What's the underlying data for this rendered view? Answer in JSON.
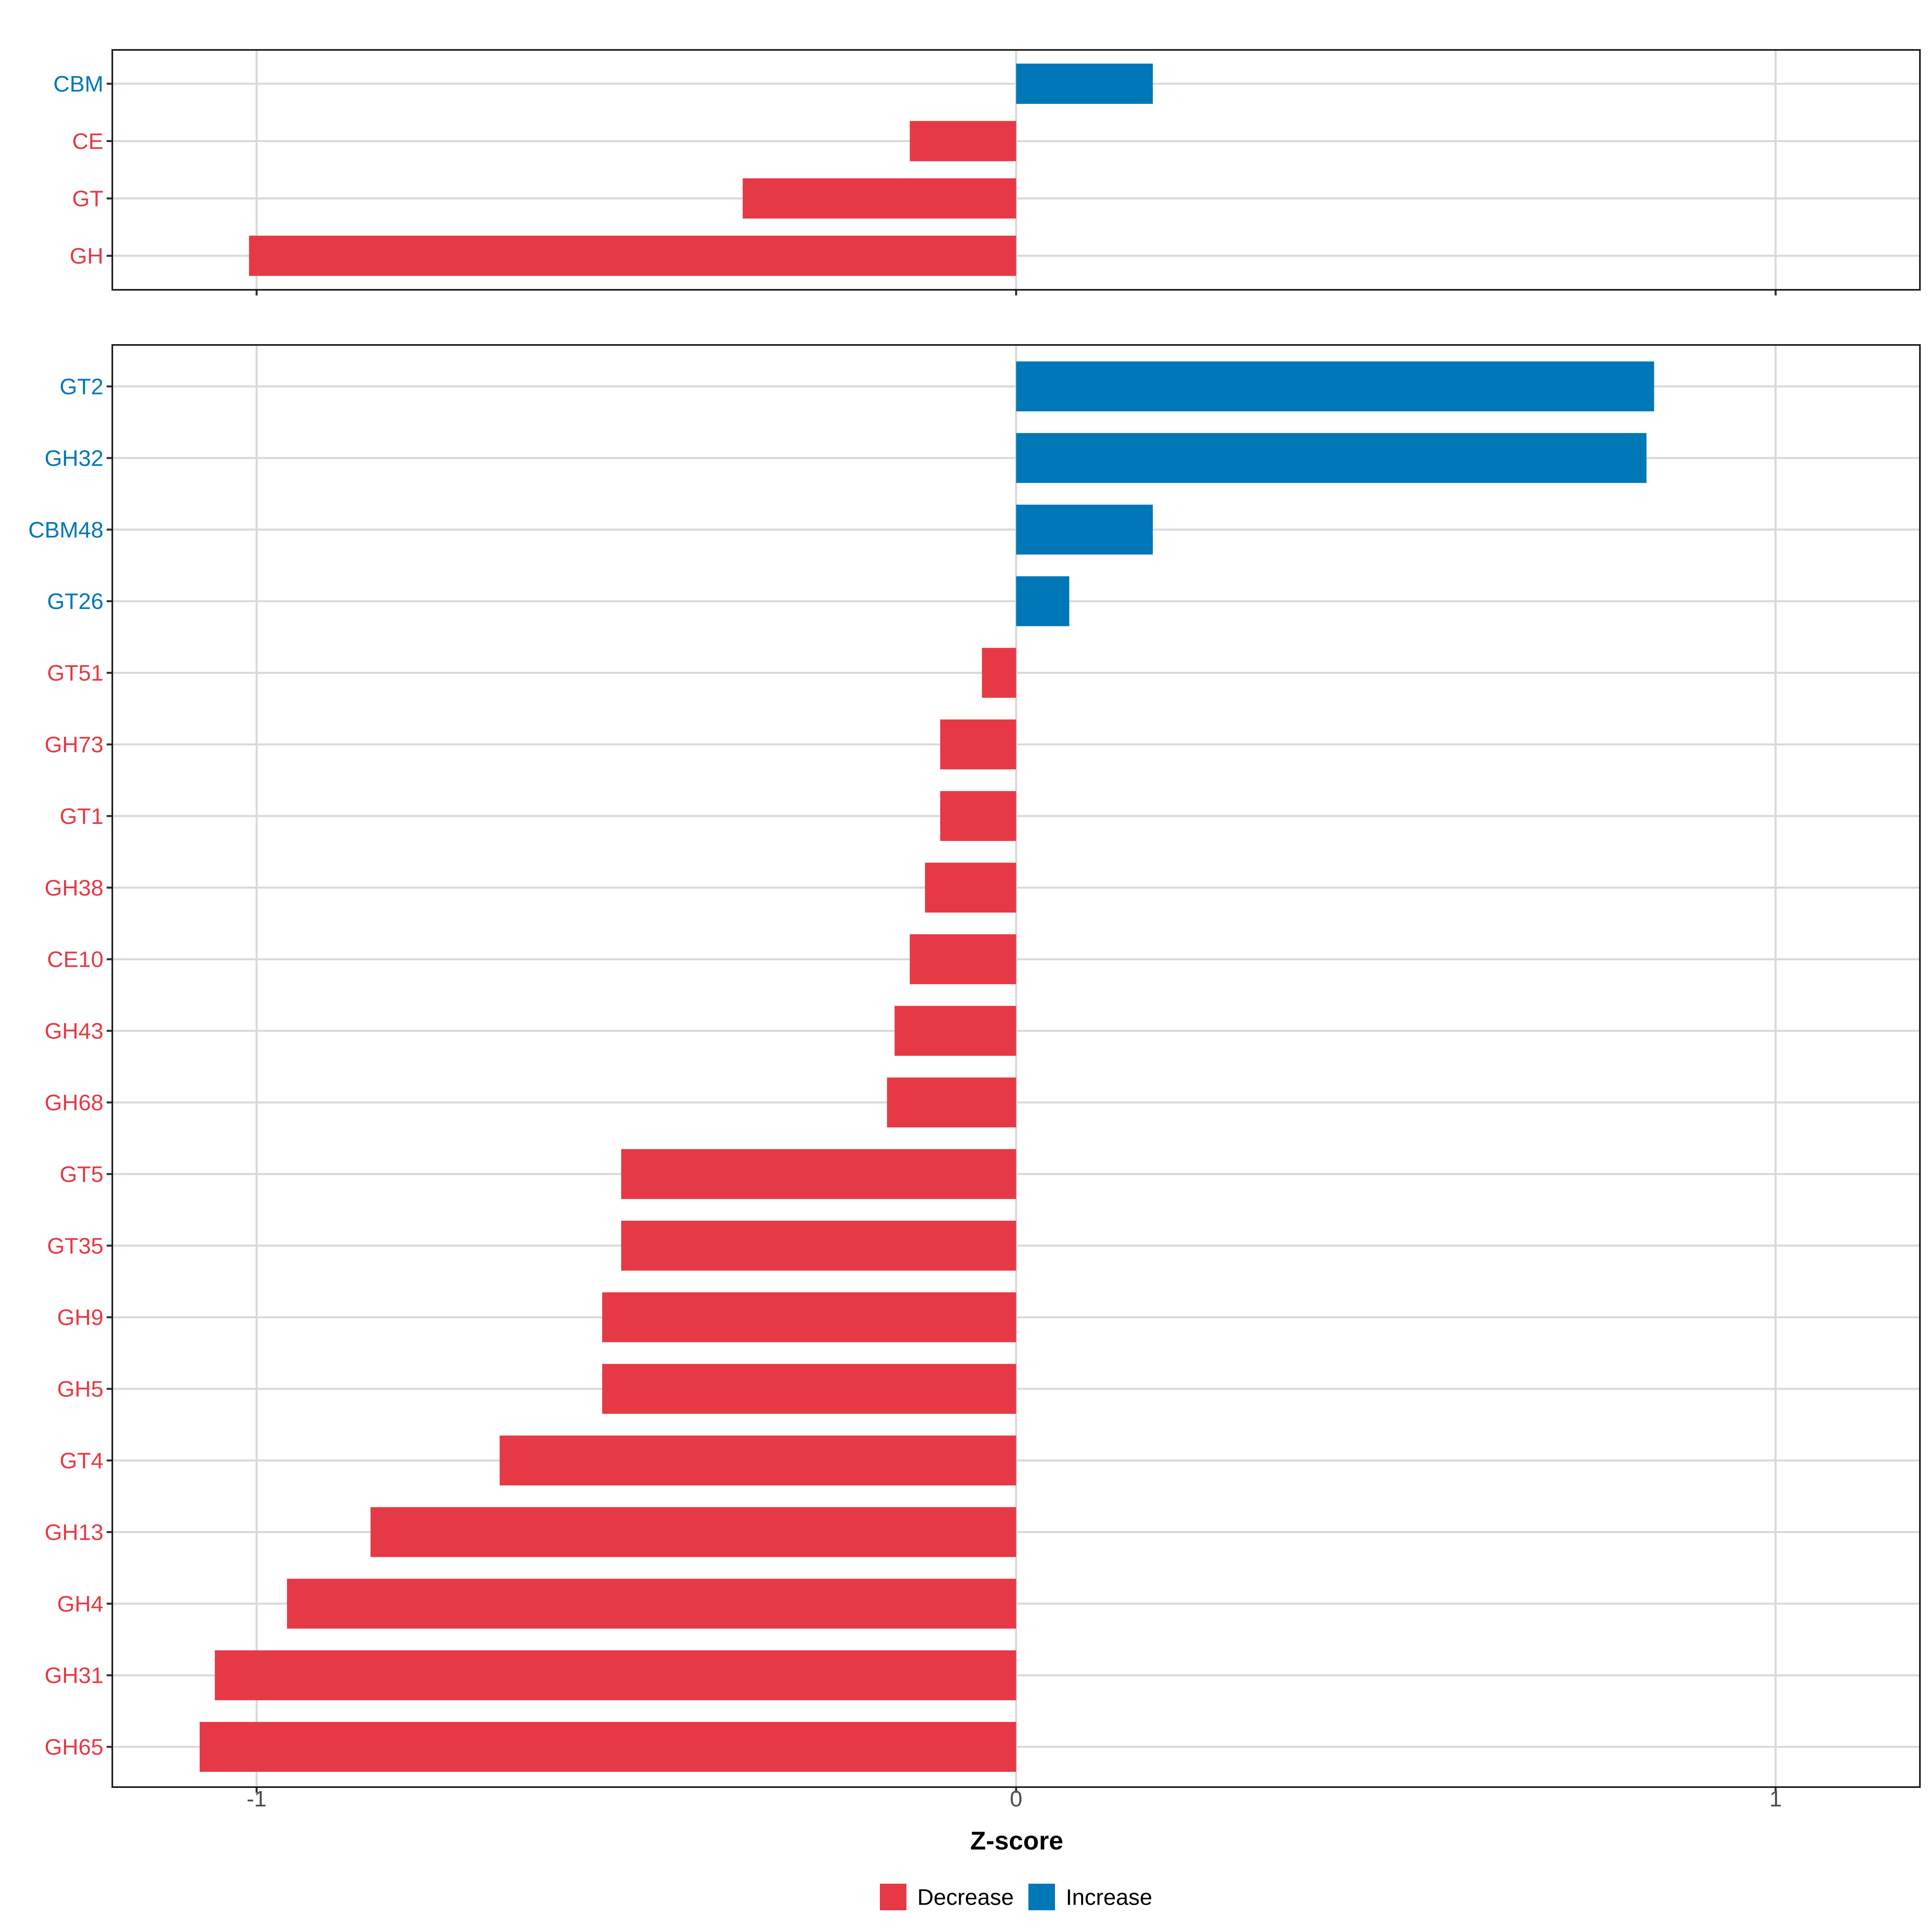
{
  "colors": {
    "decrease": "#E63946",
    "increase": "#0077B6",
    "grid": "#d9d9d9",
    "frame": "#1a1a1a",
    "tick_text": "#4d4d4d",
    "title_text": "#000000"
  },
  "chart_data": [
    {
      "type": "bar",
      "orientation": "horizontal",
      "panel": "top",
      "categories": [
        "CBM",
        "CE",
        "GT",
        "GH"
      ],
      "values": [
        0.18,
        -0.14,
        -0.36,
        -1.01
      ],
      "xlim": [
        -1.19,
        1.19
      ],
      "xticks": [
        -1,
        0,
        1
      ],
      "grid": true
    },
    {
      "type": "bar",
      "orientation": "horizontal",
      "panel": "bottom",
      "categories": [
        "GT2",
        "GH32",
        "CBM48",
        "GT26",
        "GT51",
        "GH73",
        "GT1",
        "GH38",
        "CE10",
        "GH43",
        "GH68",
        "GT5",
        "GT35",
        "GH9",
        "GH5",
        "GT4",
        "GH13",
        "GH4",
        "GH31",
        "GH65"
      ],
      "values": [
        0.84,
        0.83,
        0.18,
        0.07,
        -0.045,
        -0.1,
        -0.1,
        -0.12,
        -0.14,
        -0.16,
        -0.17,
        -0.52,
        -0.52,
        -0.545,
        -0.545,
        -0.68,
        -0.85,
        -0.96,
        -1.055,
        -1.075
      ],
      "xlim": [
        -1.19,
        1.19
      ],
      "xticks": [
        -1,
        0,
        1
      ],
      "xtick_labels": [
        "-1",
        "0",
        "1"
      ],
      "xlabel": "Z-score",
      "grid": true
    }
  ],
  "legend": {
    "position": "bottom",
    "items": [
      {
        "label": "Decrease",
        "color_key": "decrease"
      },
      {
        "label": "Increase",
        "color_key": "increase"
      }
    ]
  }
}
